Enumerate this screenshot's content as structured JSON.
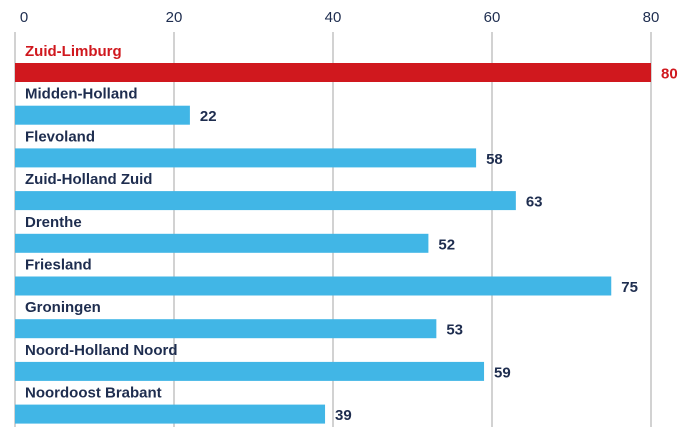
{
  "chart_data": {
    "type": "bar",
    "orientation": "horizontal",
    "categories": [
      "Zuid-Limburg",
      "Midden-Holland",
      "Flevoland",
      "Zuid-Holland Zuid",
      "Drenthe",
      "Friesland",
      "Groningen",
      "Noord-Holland Noord",
      "Noordoost Brabant"
    ],
    "values": [
      80,
      22,
      58,
      63,
      52,
      75,
      53,
      59,
      39
    ],
    "colors": [
      "#d0181e",
      "#41b6e6",
      "#41b6e6",
      "#41b6e6",
      "#41b6e6",
      "#41b6e6",
      "#41b6e6",
      "#41b6e6",
      "#41b6e6"
    ],
    "label_colors": [
      "#d0181e",
      "#1e2d4f",
      "#1e2d4f",
      "#1e2d4f",
      "#1e2d4f",
      "#1e2d4f",
      "#1e2d4f",
      "#1e2d4f",
      "#1e2d4f"
    ],
    "xlim": [
      0,
      80
    ],
    "xticks": [
      0,
      20,
      40,
      60,
      80
    ],
    "grid": true,
    "tick_position": "top"
  }
}
